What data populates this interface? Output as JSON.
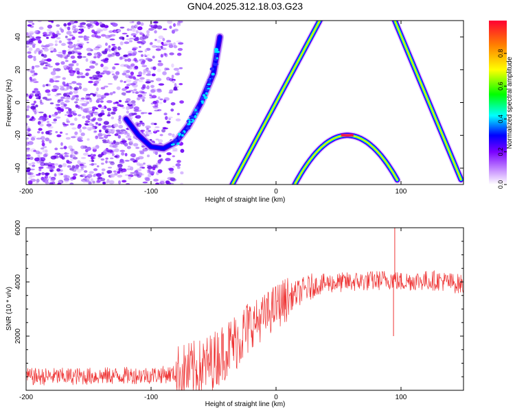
{
  "title": "GN04.2025.312.18.03.G23",
  "chart_data": [
    {
      "type": "heatmap",
      "xlabel": "Height of straight line (km)",
      "ylabel": "Frequency (Hz)",
      "xlim": [
        -200,
        150
      ],
      "ylim": [
        -50,
        50
      ],
      "x_ticks": [
        -200,
        -100,
        0,
        100
      ],
      "y_ticks": [
        -40,
        -20,
        0,
        20,
        40
      ],
      "colorbar": {
        "label": "Normalized spectral amplitude",
        "range": [
          0,
          1
        ],
        "ticks": [
          "0.0",
          "0.2",
          "0.4",
          "0.6",
          "0.8"
        ]
      },
      "features": [
        {
          "kind": "noise-cloud",
          "x_range": [
            -200,
            -75
          ],
          "freq_range": [
            -50,
            50
          ]
        },
        {
          "kind": "arc",
          "x": [
            -120,
            -110,
            -100,
            -90,
            -80,
            -70,
            -60,
            -50,
            -45
          ],
          "freq": [
            -10,
            -20,
            -27,
            -28,
            -24,
            -14,
            0,
            18,
            40
          ]
        },
        {
          "kind": "line",
          "x": [
            -35,
            35
          ],
          "freq": [
            -50,
            50
          ]
        },
        {
          "kind": "parabola",
          "vertex_x": 57,
          "vertex_freq": -20,
          "x_range": [
            15,
            97
          ],
          "freq_range": [
            -50,
            -20
          ]
        },
        {
          "kind": "line",
          "x": [
            95,
            148
          ],
          "freq": [
            50,
            -47
          ]
        }
      ]
    },
    {
      "type": "line",
      "xlabel": "Height of straight line (km)",
      "ylabel": "SNR (10 * v/v)",
      "xlim": [
        -200,
        150
      ],
      "ylim": [
        0,
        6000
      ],
      "x_ticks": [
        -200,
        -100,
        0,
        100
      ],
      "y_ticks": [
        2000,
        4000,
        6000
      ],
      "color": "#ee3333",
      "series": [
        {
          "x": [
            -200,
            -150,
            -100,
            -80,
            -60,
            -50,
            -40,
            -30,
            -20,
            -10,
            0,
            10,
            20,
            30,
            40,
            60,
            80,
            92,
            95,
            98,
            110,
            130,
            150
          ],
          "values": [
            500,
            520,
            560,
            600,
            800,
            1100,
            1500,
            1900,
            2400,
            2700,
            3100,
            3400,
            3650,
            3850,
            3950,
            4000,
            4050,
            4100,
            4100,
            4000,
            4050,
            4050,
            3900
          ]
        }
      ],
      "annotations": [
        {
          "x": 95,
          "y": 6000,
          "note": "spike"
        },
        {
          "x": 94,
          "y": 2000,
          "note": "dip"
        }
      ]
    }
  ]
}
